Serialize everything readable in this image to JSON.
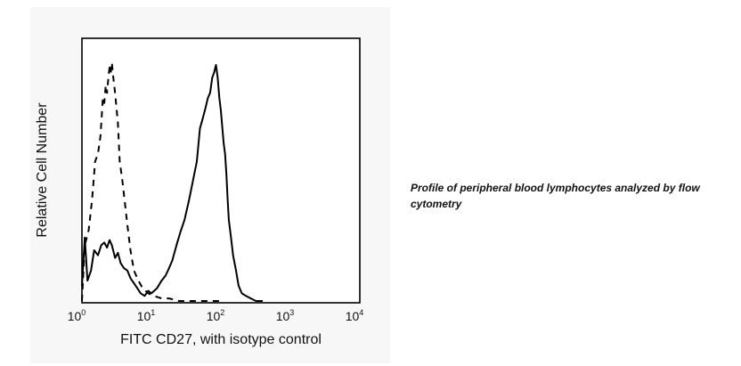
{
  "chart_data": {
    "type": "line",
    "xscale": "log",
    "xlim": [
      1,
      10000
    ],
    "ylim": [
      0,
      100
    ],
    "grid": false,
    "xlabel": "FITC CD27, with isotype control",
    "ylabel": "Relative Cell Number",
    "x_ticks": [
      {
        "base": "10",
        "exp": "0"
      },
      {
        "base": "10",
        "exp": "1"
      },
      {
        "base": "10",
        "exp": "2"
      },
      {
        "base": "10",
        "exp": "3"
      },
      {
        "base": "10",
        "exp": "4"
      }
    ],
    "series": [
      {
        "style": "dashed",
        "x": [
          1.0,
          1.1,
          1.25,
          1.4,
          1.55,
          1.7,
          1.85,
          2.0,
          2.1,
          2.2,
          2.3,
          2.4,
          2.5,
          2.6,
          2.7,
          2.8,
          2.95,
          3.1,
          3.3,
          3.5,
          3.8,
          4.1,
          4.5,
          5.0,
          5.6,
          6.5,
          7.5,
          9.0,
          11.0,
          14.0,
          18.0,
          25.0,
          35.0,
          50.0,
          70.0,
          100.0
        ],
        "y": [
          0,
          22,
          28,
          40,
          55,
          58,
          65,
          80,
          78,
          85,
          82,
          88,
          92,
          90,
          94,
          89,
          84,
          78,
          70,
          55,
          48,
          40,
          30,
          20,
          12,
          8,
          5,
          3,
          2,
          1,
          1,
          0,
          0,
          0,
          0,
          0
        ]
      },
      {
        "style": "solid",
        "x": [
          1.0,
          1.1,
          1.2,
          1.35,
          1.5,
          1.7,
          1.9,
          2.1,
          2.3,
          2.5,
          2.7,
          3.0,
          3.3,
          3.6,
          4.0,
          4.5,
          5.0,
          5.6,
          6.3,
          7.0,
          8.0,
          9.0,
          10.0,
          12.0,
          14.0,
          16.0,
          18.0,
          20.0,
          23.0,
          26.0,
          30.0,
          35.0,
          40.0,
          45.0,
          50.0,
          55.0,
          60.0,
          65.0,
          70.0,
          75.0,
          80.0,
          85.0,
          90.0,
          95.0,
          100.0,
          105.0,
          110.0,
          115.0,
          120.0,
          125.0,
          130.0,
          140.0,
          150.0,
          165.0,
          180.0,
          200.0,
          230.0,
          270.0,
          320.0,
          400.0
        ],
        "y": [
          6,
          25,
          8,
          12,
          20,
          18,
          22,
          23,
          21,
          24,
          22,
          17,
          19,
          15,
          13,
          12,
          9,
          7,
          5,
          3,
          2,
          4,
          3,
          5,
          8,
          10,
          13,
          16,
          22,
          27,
          32,
          40,
          48,
          55,
          68,
          72,
          76,
          80,
          82,
          88,
          90,
          93,
          88,
          80,
          75,
          68,
          62,
          58,
          50,
          40,
          32,
          25,
          18,
          12,
          6,
          3,
          2,
          1,
          0,
          0
        ]
      }
    ]
  },
  "caption": "Profile of peripheral blood lymphocytes analyzed by flow cytometry"
}
